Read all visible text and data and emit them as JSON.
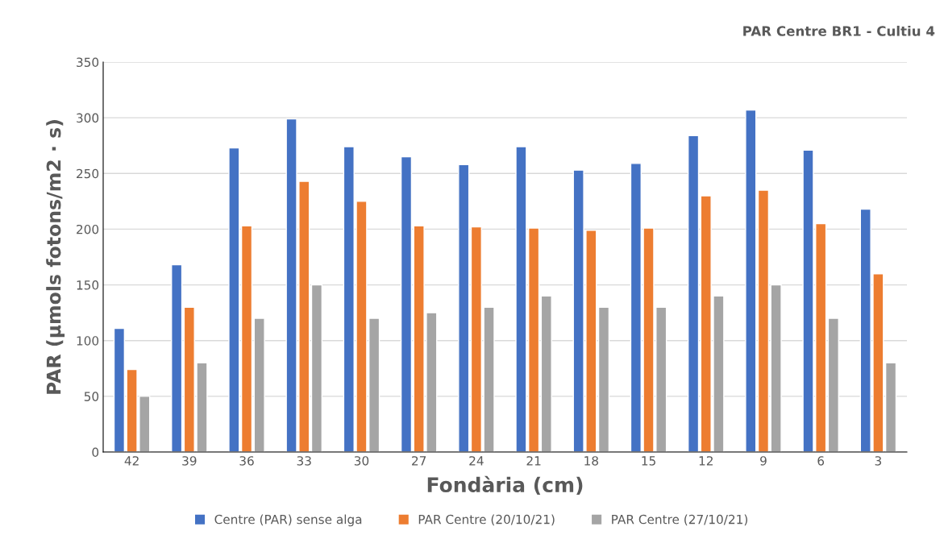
{
  "chart_data": {
    "type": "bar",
    "title": "PAR Centre BR1 - Cultiu 4",
    "xlabel": "Fondària (cm)",
    "ylabel": "PAR (µmols fotons/m2 · s)",
    "categories": [
      "42",
      "39",
      "36",
      "33",
      "30",
      "27",
      "24",
      "21",
      "18",
      "15",
      "12",
      "9",
      "6",
      "3"
    ],
    "series": [
      {
        "name": "Centre (PAR) sense alga",
        "color": "#4472c4",
        "values": [
          111,
          168,
          273,
          299,
          274,
          265,
          258,
          274,
          253,
          259,
          284,
          307,
          271,
          218
        ]
      },
      {
        "name": "PAR Centre (20/10/21)",
        "color": "#ed7d31",
        "values": [
          74,
          130,
          203,
          243,
          225,
          203,
          202,
          201,
          199,
          201,
          230,
          235,
          205,
          160
        ]
      },
      {
        "name": "PAR Centre (27/10/21)",
        "color": "#a5a5a5",
        "values": [
          50,
          80,
          120,
          150,
          120,
          125,
          130,
          140,
          130,
          130,
          140,
          150,
          120,
          80
        ]
      }
    ],
    "ylim": [
      0,
      350
    ],
    "yticks": [
      0,
      50,
      100,
      150,
      200,
      250,
      300,
      350
    ],
    "grid": "y",
    "legend": "bottom"
  }
}
